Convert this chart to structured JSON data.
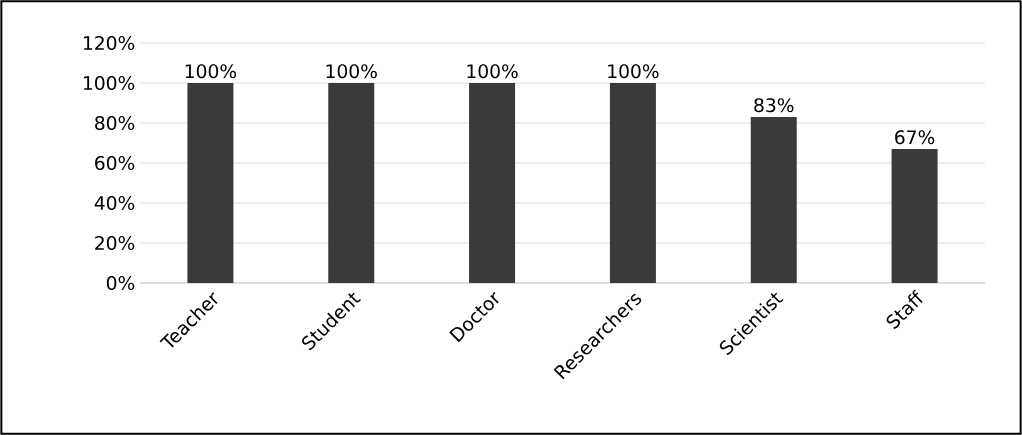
{
  "chart_data": {
    "type": "bar",
    "categories": [
      "Teacher",
      "Student",
      "Doctor",
      "Researchers",
      "Scientist",
      "Staff"
    ],
    "values": [
      100,
      100,
      100,
      100,
      83,
      67
    ],
    "value_labels": [
      "100%",
      "100%",
      "100%",
      "100%",
      "83%",
      "67%"
    ],
    "color": "#3a3a3a",
    "ylim": [
      0,
      120
    ],
    "yticks": [
      {
        "value": 0,
        "label": "0%"
      },
      {
        "value": 20,
        "label": "20%"
      },
      {
        "value": 40,
        "label": "40%"
      },
      {
        "value": 60,
        "label": "60%"
      },
      {
        "value": 80,
        "label": "80%"
      },
      {
        "value": 100,
        "label": "100%"
      },
      {
        "value": 120,
        "label": "120%"
      }
    ],
    "grid": "y"
  }
}
